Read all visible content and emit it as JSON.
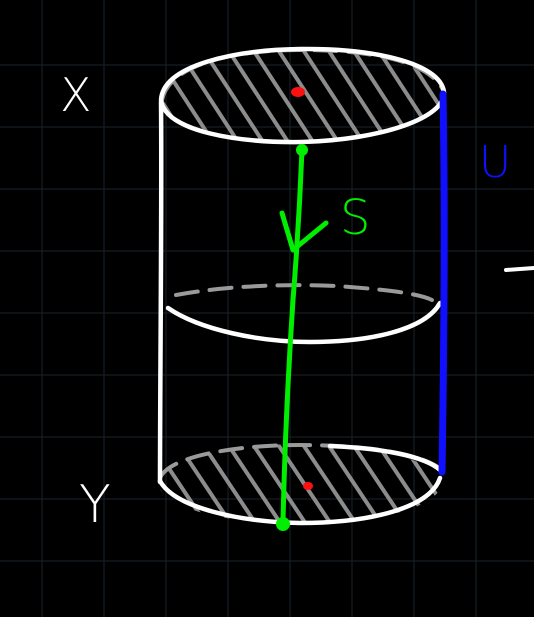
{
  "diagram": {
    "labels": {
      "top": "X",
      "bottom": "Y",
      "path": "S",
      "side": "U"
    },
    "colors": {
      "background": "#000000",
      "grid": "#17232d",
      "outline": "#ffffff",
      "hatch": "#8c8c8c",
      "dashed_rim": "#9a9a9a",
      "path_line": "#00ee00",
      "side_line": "#1010ff",
      "points": "#ff1010"
    },
    "icons": {
      "cylinder": "cylinder-outline",
      "arrow": "down-arrow"
    }
  }
}
